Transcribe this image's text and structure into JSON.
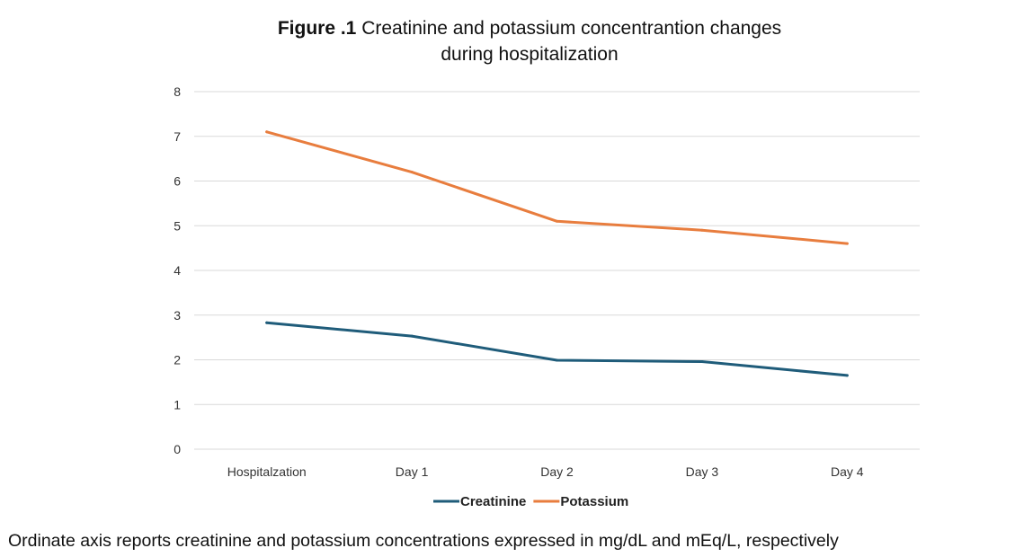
{
  "chart_data": {
    "type": "line",
    "title_bold": "Figure .1",
    "title_line1": "Creatinine and potassium concentrantion changes",
    "title_line2": "during hospitalization",
    "categories": [
      "Hospitalzation",
      "Day 1",
      "Day 2",
      "Day 3",
      "Day 4"
    ],
    "series": [
      {
        "name": "Creatinine",
        "color": "#1f5c7a",
        "values": [
          2.83,
          2.53,
          1.99,
          1.96,
          1.65
        ]
      },
      {
        "name": "Potassium",
        "color": "#e87d3e",
        "values": [
          7.1,
          6.2,
          5.1,
          4.9,
          4.6
        ]
      }
    ],
    "ylim": [
      0,
      8
    ],
    "yticks": [
      0,
      1,
      2,
      3,
      4,
      5,
      6,
      7,
      8
    ],
    "grid": true,
    "legend_position": "bottom"
  },
  "caption": "Ordinate  axis reports creatinine and potassium concentrations expressed in mg/dL and mEq/L, respectively"
}
